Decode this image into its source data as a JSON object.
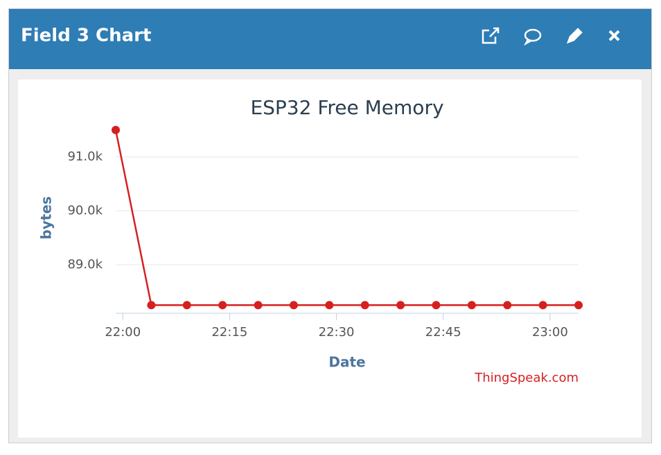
{
  "header": {
    "title": "Field 3 Chart"
  },
  "chart_data": {
    "type": "line",
    "title": "ESP32 Free Memory",
    "x_label": "Date",
    "y_label": "bytes",
    "credit": "ThingSpeak.com",
    "x": [
      "21:59",
      "22:04",
      "22:09",
      "22:14",
      "22:19",
      "22:24",
      "22:29",
      "22:34",
      "22:39",
      "22:44",
      "22:49",
      "22:54",
      "22:59",
      "23:04"
    ],
    "series": [
      {
        "name": "bytes",
        "color": "#d62020",
        "values": [
          91500,
          88250,
          88250,
          88250,
          88250,
          88250,
          88250,
          88250,
          88250,
          88250,
          88250,
          88250,
          88250,
          88250
        ]
      }
    ],
    "xlim": [
      "21:59",
      "23:04"
    ],
    "xticks": [
      "22:00",
      "22:15",
      "22:30",
      "22:45",
      "23:00"
    ],
    "ylim": [
      88100,
      92000
    ],
    "yticks": [
      {
        "value": 89000,
        "label": "89.0k"
      },
      {
        "value": 90000,
        "label": "90.0k"
      },
      {
        "value": 91000,
        "label": "91.0k"
      }
    ],
    "grid": true
  }
}
